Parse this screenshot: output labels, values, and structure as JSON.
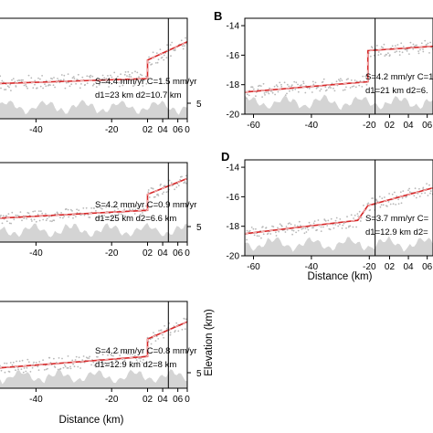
{
  "chart_data": [
    {
      "type": "line",
      "panel": "",
      "xlim": [
        -50,
        0
      ],
      "x_ticks": [
        "-40",
        "-20",
        "02",
        "04",
        "06",
        "0"
      ],
      "ylim": [
        -20,
        -14
      ],
      "y_ticks": [],
      "right_tick": "5",
      "offset_x": -10.5,
      "offset_from": -17.6,
      "offset_to": -16.5,
      "model": [
        [
          -50,
          -17.9
        ],
        [
          -10.5,
          -17.6
        ],
        [
          -10.5,
          -16.5
        ],
        [
          0,
          -15.4
        ]
      ],
      "annotation": [
        "S=4.4 mm/yr C=1.5 mm/yr",
        "d1=23 km d2=10.7 km"
      ],
      "xlabel": "",
      "ylabel": ""
    },
    {
      "type": "line",
      "panel": "B",
      "xlim": [
        -63,
        2
      ],
      "x_ticks": [
        "-60",
        "-40",
        "-20",
        "02",
        "04",
        "06"
      ],
      "ylim": [
        -20,
        -13.5
      ],
      "y_ticks": [
        "-14",
        "-16",
        "-18",
        "-20"
      ],
      "right_tick": "",
      "offset_x": -20.5,
      "offset_from": -17.8,
      "offset_to": -15.7,
      "model": [
        [
          -63,
          -18.5
        ],
        [
          -20.5,
          -17.8
        ],
        [
          -20.5,
          -15.7
        ],
        [
          2,
          -15.4
        ]
      ],
      "annotation": [
        "S=4.2 mm/yr C=1 mm/yr",
        "d1=21 km d2=6."
      ],
      "xlabel": "",
      "ylabel": ""
    },
    {
      "type": "line",
      "panel": "",
      "xlim": [
        -50,
        0
      ],
      "x_ticks": [
        "-40",
        "-20",
        "02",
        "04",
        "06",
        "0"
      ],
      "ylim": [
        -20,
        -14
      ],
      "y_ticks": [],
      "right_tick": "5",
      "offset_x": -10.5,
      "offset_from": -17.6,
      "offset_to": -16.4,
      "model": [
        [
          -50,
          -18.2
        ],
        [
          -10.5,
          -17.6
        ],
        [
          -10.5,
          -16.4
        ],
        [
          0,
          -15.2
        ]
      ],
      "annotation": [
        "S=4.2 mm/yr C=0.9 mm/yr",
        "d1=25 km d2=6.6 km"
      ],
      "xlabel": "",
      "ylabel": ""
    },
    {
      "type": "line",
      "panel": "D",
      "xlim": [
        -63,
        2
      ],
      "x_ticks": [
        "-60",
        "-40",
        "-20",
        "02",
        "04",
        "06"
      ],
      "ylim": [
        -20,
        -13.5
      ],
      "y_ticks": [
        "-14",
        "-16",
        "-18",
        "-20"
      ],
      "right_tick": "",
      "offset_x": -20.5,
      "offset_from": -17.4,
      "offset_to": -16.6,
      "model": [
        [
          -63,
          -18.5
        ],
        [
          -24,
          -17.6
        ],
        [
          -20.5,
          -16.6
        ],
        [
          2,
          -15.4
        ]
      ],
      "annotation": [
        "S=3.7 mm/yr C=",
        "d1=12.9 km d2="
      ],
      "xlabel": "Distance (km)",
      "ylabel": ""
    },
    {
      "type": "line",
      "panel": "",
      "xlim": [
        -50,
        0
      ],
      "x_ticks": [
        "-40",
        "-20",
        "02",
        "04",
        "06",
        "0"
      ],
      "ylim": [
        -20,
        -14
      ],
      "y_ticks": [],
      "right_tick": "5",
      "offset_x": -10.5,
      "offset_from": -17.8,
      "offset_to": -16.6,
      "model": [
        [
          -50,
          -18.6
        ],
        [
          -10.5,
          -17.8
        ],
        [
          -10.5,
          -16.6
        ],
        [
          0,
          -15.4
        ]
      ],
      "annotation": [
        "S=4.2 mm/yr C=0.8 mm/yr",
        "d1=12.9 km d2=8 km"
      ],
      "xlabel": "Distance (km)",
      "ylabel": "Elevation (km)"
    }
  ],
  "colors": {
    "model_line": "#d62728",
    "model_dash": "#ffffff",
    "scatter": "#b8b8b8",
    "topography": "#d4d4d4",
    "axis": "#000000"
  }
}
